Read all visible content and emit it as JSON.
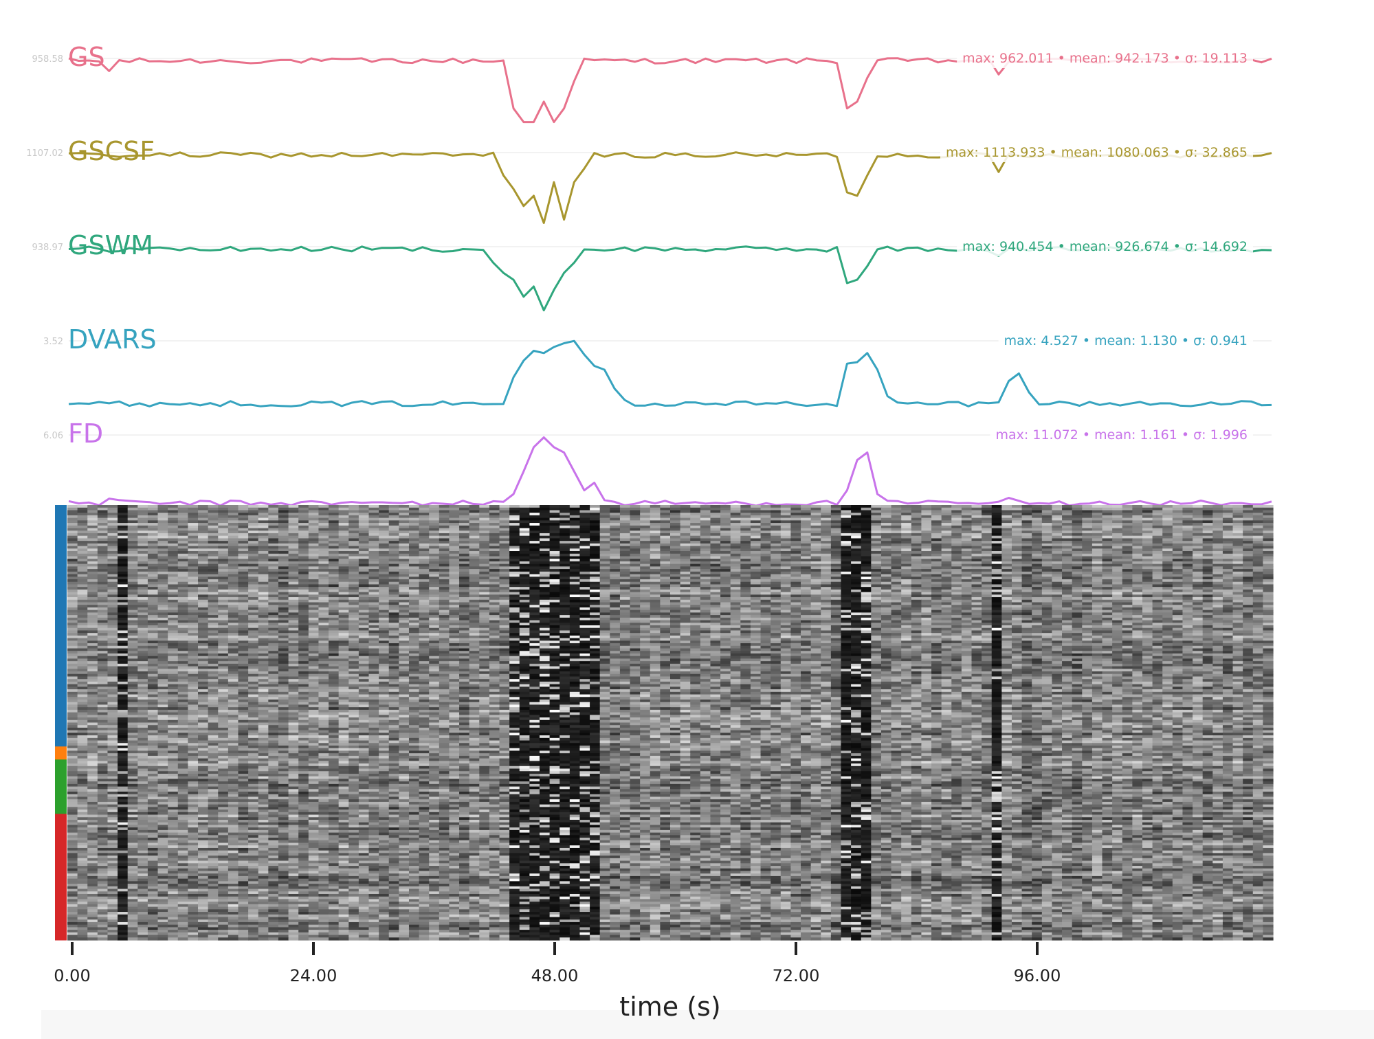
{
  "chart_data": {
    "type": "line",
    "xlabel": "time (s)",
    "xlim": [
      0,
      120
    ],
    "x_ticks": [
      "0.00",
      "24.00",
      "48.00",
      "72.00",
      "96.00"
    ],
    "x_tick_values": [
      0,
      24,
      48,
      72,
      96
    ],
    "n_timepoints": 120,
    "series": [
      {
        "name": "GS",
        "color": "#e8718b",
        "ref_label": "958.58",
        "ref_value": 958.58,
        "stats_text": "max: 962.011 • mean: 942.173 • σ: 19.113",
        "max": 962.011,
        "mean": 942.173,
        "sigma": 19.113,
        "spikes": [
          [
            4,
            -0.15
          ],
          [
            44,
            -0.7
          ],
          [
            45,
            -0.9
          ],
          [
            46,
            -0.9
          ],
          [
            47,
            -0.6
          ],
          [
            48,
            -0.9
          ],
          [
            49,
            -0.7
          ],
          [
            50,
            -0.3
          ],
          [
            77,
            -0.7
          ],
          [
            78,
            -0.6
          ],
          [
            79,
            -0.25
          ],
          [
            92,
            -0.2
          ]
        ],
        "base_level": 0.95
      },
      {
        "name": "GSCSF",
        "color": "#a8962e",
        "ref_label": "1107.02",
        "ref_value": 1107.02,
        "stats_text": "max: 1113.933 • mean: 1080.063 • σ: 32.865",
        "max": 1113.933,
        "mean": 1080.063,
        "sigma": 32.865,
        "spikes": [
          [
            43,
            -0.3
          ],
          [
            44,
            -0.5
          ],
          [
            45,
            -0.75
          ],
          [
            46,
            -0.6
          ],
          [
            47,
            -1.0
          ],
          [
            48,
            -0.4
          ],
          [
            49,
            -0.95
          ],
          [
            50,
            -0.4
          ],
          [
            51,
            -0.2
          ],
          [
            77,
            -0.55
          ],
          [
            78,
            -0.6
          ],
          [
            79,
            -0.3
          ],
          [
            92,
            -0.25
          ]
        ],
        "base_level": 0.95
      },
      {
        "name": "GSWM",
        "color": "#2fa77d",
        "ref_label": "938.97",
        "ref_value": 938.97,
        "stats_text": "max: 940.454 • mean: 926.674 • σ: 14.692",
        "max": 940.454,
        "mean": 926.674,
        "sigma": 14.692,
        "spikes": [
          [
            42,
            -0.2
          ],
          [
            43,
            -0.35
          ],
          [
            44,
            -0.45
          ],
          [
            45,
            -0.7
          ],
          [
            46,
            -0.55
          ],
          [
            47,
            -0.9
          ],
          [
            48,
            -0.6
          ],
          [
            49,
            -0.35
          ],
          [
            50,
            -0.2
          ],
          [
            77,
            -0.5
          ],
          [
            78,
            -0.45
          ],
          [
            79,
            -0.25
          ],
          [
            92,
            -0.1
          ]
        ],
        "base_level": 0.95
      },
      {
        "name": "DVARS",
        "color": "#36a3bf",
        "ref_label": "3.52",
        "ref_value": 3.52,
        "stats_text": "max: 4.527 • mean: 1.130 • σ: 0.941",
        "max": 4.527,
        "mean": 1.13,
        "sigma": 0.941,
        "spikes": [
          [
            44,
            0.5
          ],
          [
            45,
            0.72
          ],
          [
            46,
            0.85
          ],
          [
            47,
            0.82
          ],
          [
            48,
            0.9
          ],
          [
            49,
            0.95
          ],
          [
            50,
            0.98
          ],
          [
            51,
            0.8
          ],
          [
            52,
            0.65
          ],
          [
            53,
            0.6
          ],
          [
            54,
            0.35
          ],
          [
            55,
            0.2
          ],
          [
            77,
            0.68
          ],
          [
            78,
            0.7
          ],
          [
            79,
            0.82
          ],
          [
            80,
            0.6
          ],
          [
            81,
            0.25
          ],
          [
            93,
            0.45
          ],
          [
            94,
            0.55
          ],
          [
            95,
            0.3
          ]
        ],
        "base_level": 0.15
      },
      {
        "name": "FD",
        "color": "#c873ea",
        "ref_label": "6.06",
        "ref_value": 6.06,
        "stats_text": "max: 11.072 • mean: 1.161 • σ: 1.996",
        "max": 11.072,
        "mean": 1.161,
        "sigma": 1.996,
        "spikes": [
          [
            4,
            0.14
          ],
          [
            5,
            0.12
          ],
          [
            44,
            0.2
          ],
          [
            45,
            0.5
          ],
          [
            46,
            0.82
          ],
          [
            47,
            0.95
          ],
          [
            48,
            0.82
          ],
          [
            49,
            0.75
          ],
          [
            50,
            0.5
          ],
          [
            51,
            0.25
          ],
          [
            52,
            0.35
          ],
          [
            53,
            0.12
          ],
          [
            77,
            0.25
          ],
          [
            78,
            0.65
          ],
          [
            79,
            0.75
          ],
          [
            80,
            0.2
          ],
          [
            93,
            0.15
          ],
          [
            96,
            0.08
          ],
          [
            102,
            0.1
          ]
        ],
        "base_level": 0.08
      }
    ],
    "carpet": {
      "colormap": "gray",
      "segments": [
        {
          "color": "#1f77b4",
          "fraction": 0.555
        },
        {
          "color": "#ff7f0e",
          "fraction": 0.03
        },
        {
          "color": "#2ca02c",
          "fraction": 0.125
        },
        {
          "color": "#d62728",
          "fraction": 0.29
        }
      ],
      "dark_columns": [
        5,
        44,
        45,
        46,
        47,
        48,
        49,
        50,
        51,
        52,
        77,
        78,
        79,
        92
      ]
    }
  }
}
